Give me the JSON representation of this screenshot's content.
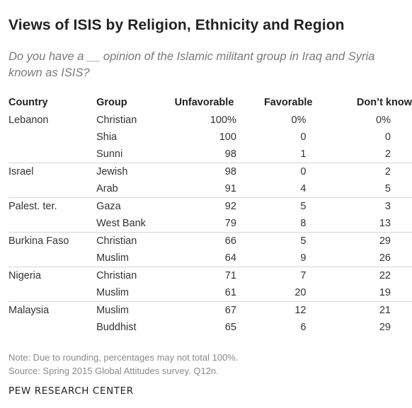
{
  "title": "Views of ISIS by Religion, Ethnicity and Region",
  "subtitle": "Do you have a __ opinion of the Islamic militant group in Iraq and Syria known as ISIS?",
  "chart_data": {
    "type": "table",
    "columns": [
      "Country",
      "Group",
      "Unfavorable",
      "Favorable",
      "Don’t know"
    ],
    "groups": [
      {
        "country": "Lebanon",
        "rows": [
          {
            "group": "Christian",
            "unfavorable": "100%",
            "favorable": "0%",
            "dont_know": "0%"
          },
          {
            "group": "Shia",
            "unfavorable": "100",
            "favorable": "0",
            "dont_know": "0"
          },
          {
            "group": "Sunni",
            "unfavorable": "98",
            "favorable": "1",
            "dont_know": "2"
          }
        ]
      },
      {
        "country": "Israel",
        "rows": [
          {
            "group": "Jewish",
            "unfavorable": "98",
            "favorable": "0",
            "dont_know": "2"
          },
          {
            "group": "Arab",
            "unfavorable": "91",
            "favorable": "4",
            "dont_know": "5"
          }
        ]
      },
      {
        "country": "Palest. ter.",
        "rows": [
          {
            "group": "Gaza",
            "unfavorable": "92",
            "favorable": "5",
            "dont_know": "3"
          },
          {
            "group": "West Bank",
            "unfavorable": "79",
            "favorable": "8",
            "dont_know": "13"
          }
        ]
      },
      {
        "country": "Burkina Faso",
        "rows": [
          {
            "group": "Christian",
            "unfavorable": "66",
            "favorable": "5",
            "dont_know": "29"
          },
          {
            "group": "Muslim",
            "unfavorable": "64",
            "favorable": "9",
            "dont_know": "26"
          }
        ]
      },
      {
        "country": "Nigeria",
        "rows": [
          {
            "group": "Christian",
            "unfavorable": "71",
            "favorable": "7",
            "dont_know": "22"
          },
          {
            "group": "Muslim",
            "unfavorable": "61",
            "favorable": "20",
            "dont_know": "19"
          }
        ]
      },
      {
        "country": "Malaysia",
        "rows": [
          {
            "group": "Muslim",
            "unfavorable": "67",
            "favorable": "12",
            "dont_know": "21"
          },
          {
            "group": "Buddhist",
            "unfavorable": "65",
            "favorable": "6",
            "dont_know": "29"
          }
        ]
      }
    ]
  },
  "note": "Note: Due to rounding, percentages may not total 100%.",
  "source": "Source: Spring 2015 Global Attitudes survey. Q12n.",
  "credit": "PEW RESEARCH CENTER"
}
